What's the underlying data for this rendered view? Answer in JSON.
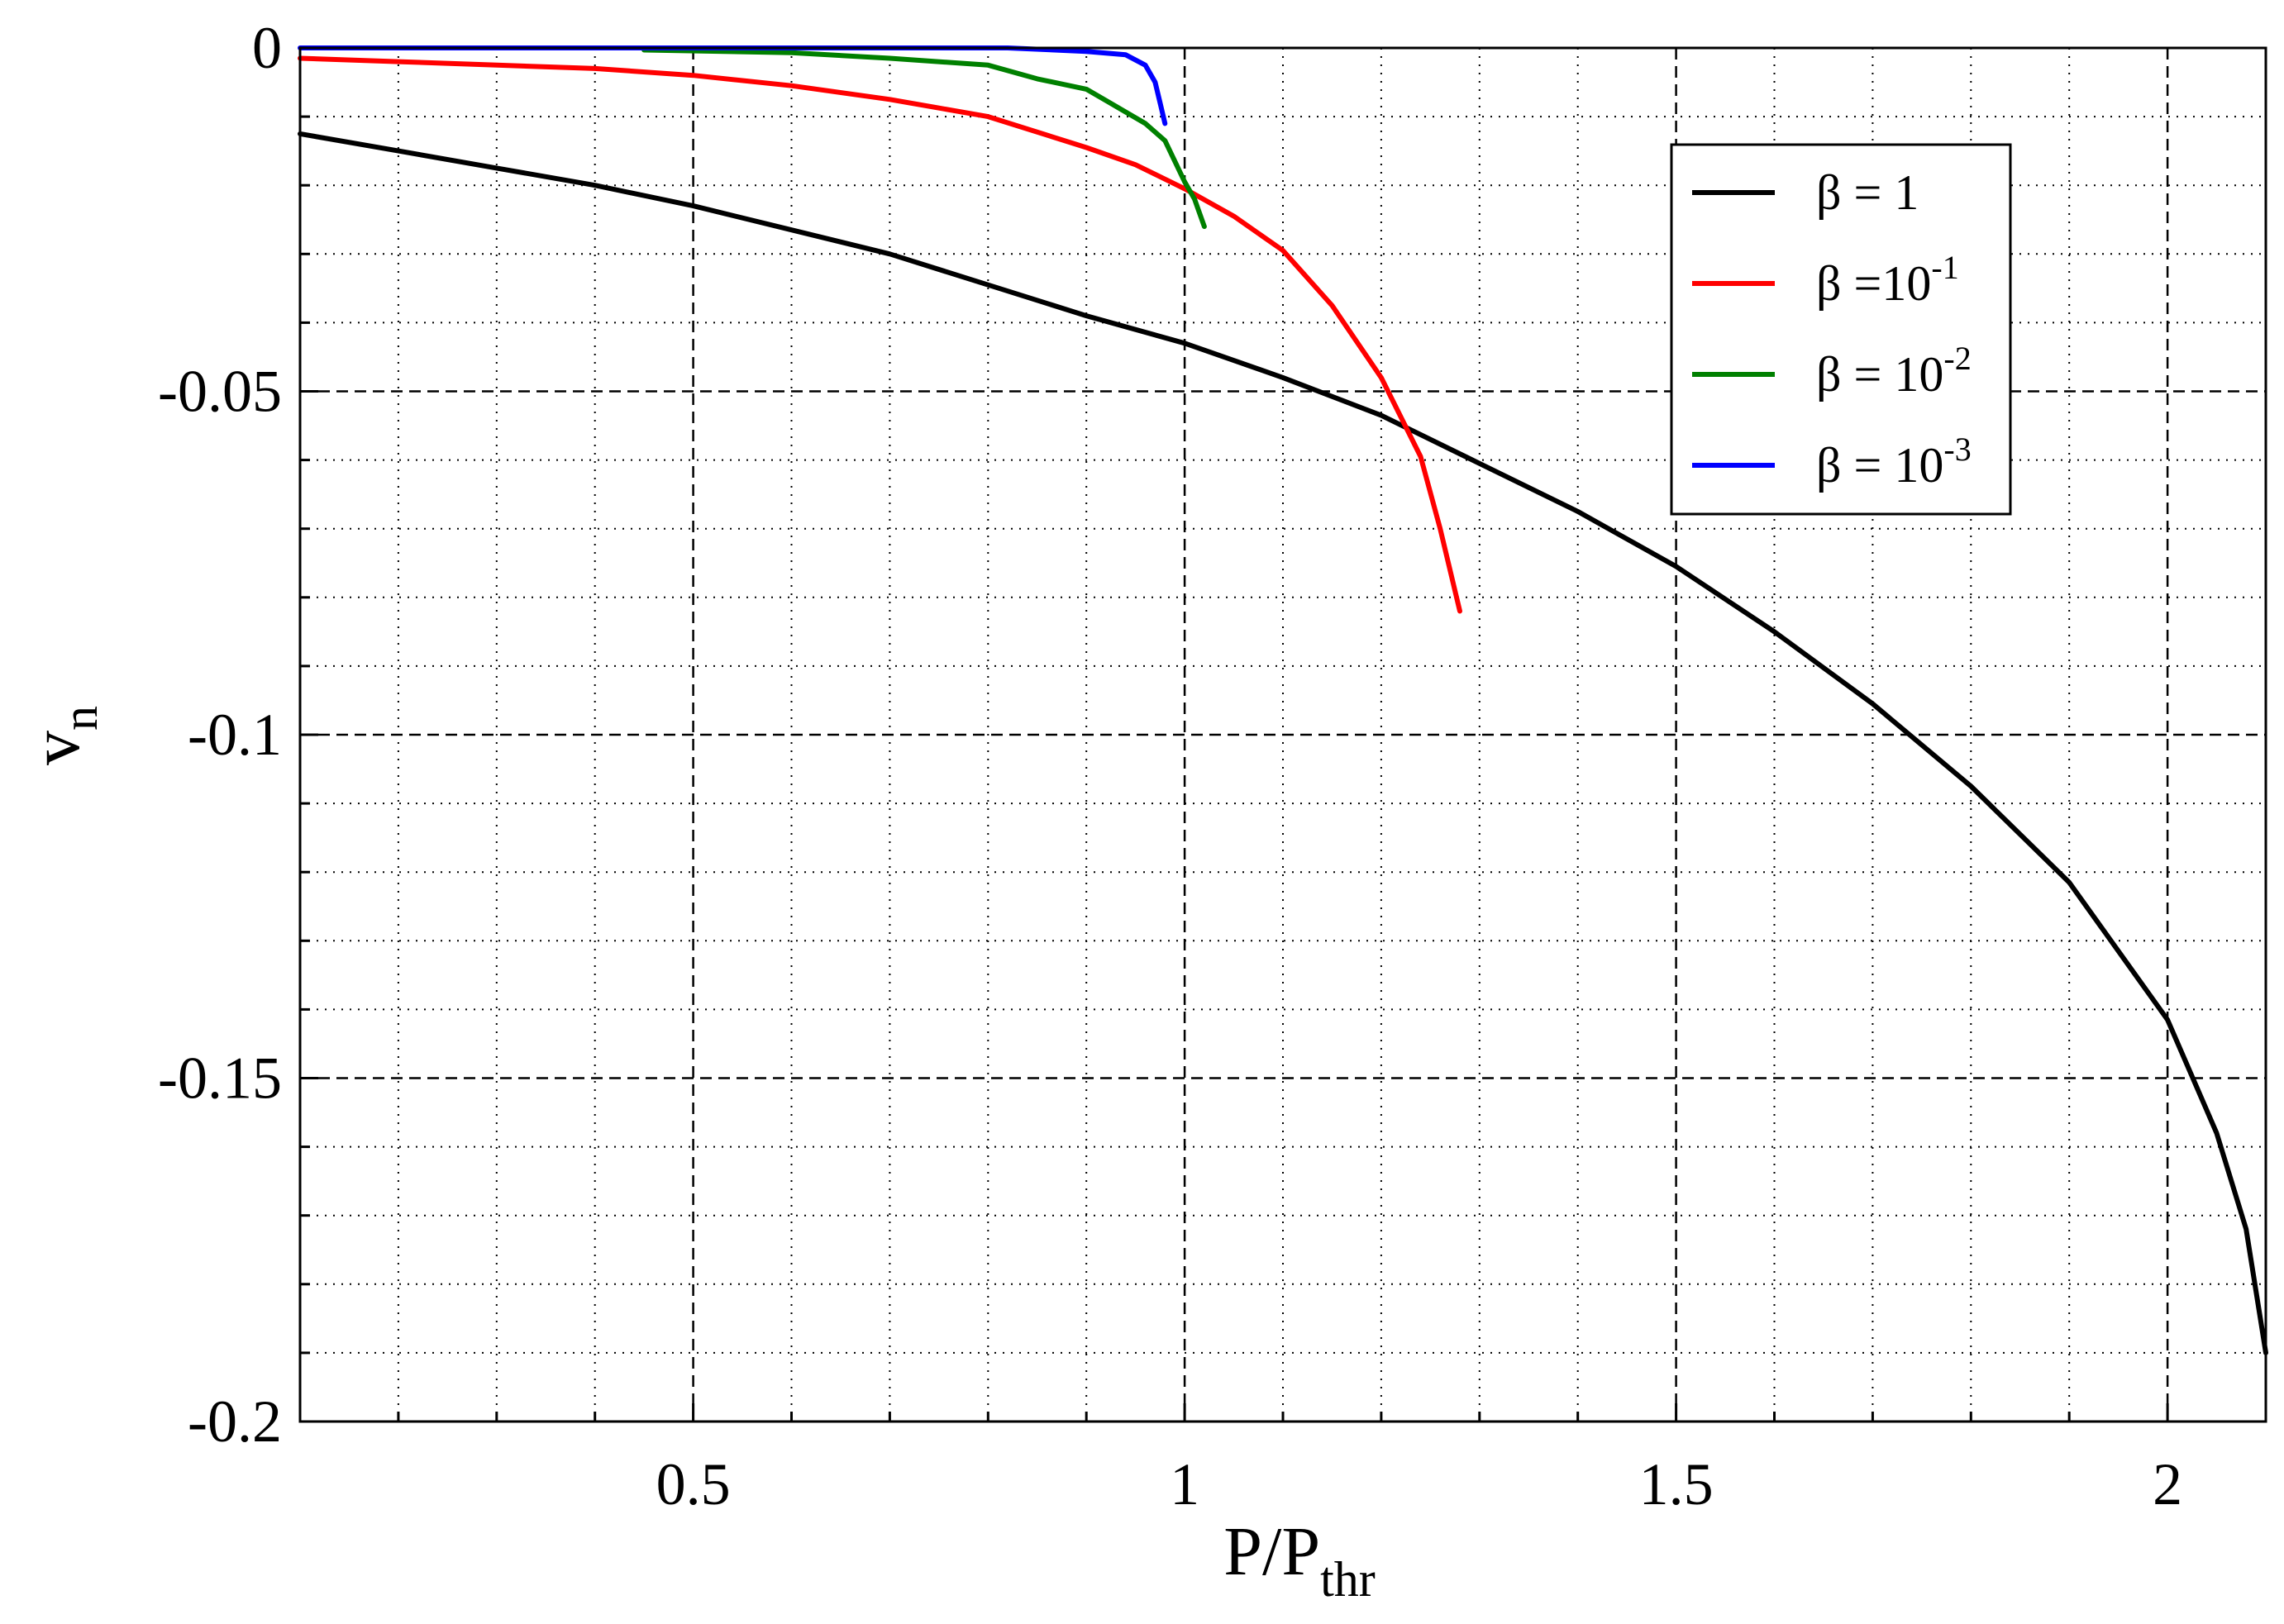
{
  "chart_data": {
    "type": "line",
    "title": "",
    "xlabel": {
      "main": "P/P",
      "sub": "thr"
    },
    "ylabel": {
      "main": "v",
      "sub": "n"
    },
    "xlim": [
      0.1,
      2.1
    ],
    "ylim": [
      -0.2,
      0.0
    ],
    "x_ticks": [
      0.5,
      1,
      1.5,
      2
    ],
    "x_tick_labels": [
      "0.5",
      "1",
      "1.5",
      "2"
    ],
    "y_ticks": [
      0,
      -0.05,
      -0.1,
      -0.15,
      -0.2
    ],
    "y_tick_labels": [
      "0",
      "-0.05",
      "-0.1",
      "-0.15",
      "-0.2"
    ],
    "x_minor_step": 0.1,
    "y_minor_step": 0.01,
    "grid": true,
    "legend_position": "top-right",
    "series": [
      {
        "name": "β = 1",
        "label": {
          "base": "β = 1",
          "exp": ""
        },
        "color": "#000000",
        "x": [
          0.1,
          0.2,
          0.3,
          0.4,
          0.5,
          0.6,
          0.7,
          0.8,
          0.9,
          1.0,
          1.1,
          1.2,
          1.3,
          1.4,
          1.5,
          1.6,
          1.7,
          1.8,
          1.9,
          2.0,
          2.05,
          2.08,
          2.1
        ],
        "y": [
          -0.0125,
          -0.015,
          -0.0175,
          -0.02,
          -0.023,
          -0.0265,
          -0.03,
          -0.0345,
          -0.039,
          -0.043,
          -0.048,
          -0.0535,
          -0.0605,
          -0.0675,
          -0.0755,
          -0.085,
          -0.0955,
          -0.1075,
          -0.1215,
          -0.1415,
          -0.158,
          -0.172,
          -0.19
        ]
      },
      {
        "name": "β =10^-1",
        "label": {
          "base": "β  =10",
          "exp": "-1"
        },
        "color": "#ff0000",
        "x": [
          0.1,
          0.2,
          0.3,
          0.4,
          0.5,
          0.6,
          0.7,
          0.8,
          0.9,
          0.95,
          1.0,
          1.05,
          1.1,
          1.15,
          1.2,
          1.24,
          1.26,
          1.27,
          1.28
        ],
        "y": [
          -0.0015,
          -0.002,
          -0.0025,
          -0.003,
          -0.004,
          -0.0055,
          -0.0075,
          -0.01,
          -0.0145,
          -0.017,
          -0.0205,
          -0.0245,
          -0.0295,
          -0.0375,
          -0.048,
          -0.0595,
          -0.07,
          -0.076,
          -0.082
        ]
      },
      {
        "name": "β = 10^-2",
        "label": {
          "base": "β = 10",
          "exp": "-2"
        },
        "color": "#008000",
        "x": [
          0.45,
          0.6,
          0.7,
          0.8,
          0.85,
          0.9,
          0.93,
          0.96,
          0.98,
          0.99,
          1.0,
          1.01,
          1.02
        ],
        "y": [
          -0.0003,
          -0.0007,
          -0.0015,
          -0.0025,
          -0.0045,
          -0.006,
          -0.0085,
          -0.011,
          -0.0135,
          -0.0165,
          -0.0195,
          -0.022,
          -0.026
        ]
      },
      {
        "name": "β = 10^-3",
        "label": {
          "base": "β = 10",
          "exp": "-3"
        },
        "color": "#0000ff",
        "x": [
          0.1,
          0.3,
          0.5,
          0.7,
          0.82,
          0.9,
          0.94,
          0.96,
          0.97,
          0.975,
          0.98
        ],
        "y": [
          0.0,
          0.0,
          0.0,
          0.0,
          0.0,
          -0.0005,
          -0.001,
          -0.0025,
          -0.005,
          -0.008,
          -0.011
        ]
      }
    ]
  }
}
